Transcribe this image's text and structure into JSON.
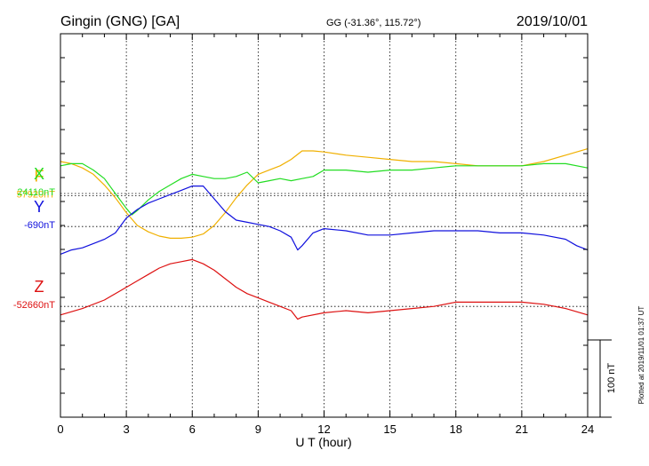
{
  "header": {
    "station": "Gingin (GNG)  [GA]",
    "coords": "GG (-31.36°, 115.72°)",
    "date": "2019/10/01"
  },
  "footer": {
    "plotted": "Plotted at 2019/11/01 01:37 UT"
  },
  "chart_data": {
    "type": "line",
    "title": "Gingin (GNG)  [GA]",
    "xlabel": "U T (hour)",
    "ylabel": "",
    "xlim": [
      0,
      24
    ],
    "x_ticks": [
      0,
      3,
      6,
      9,
      12,
      15,
      18,
      21,
      24
    ],
    "x_tick_labels": [
      "0",
      "3",
      "6",
      "9",
      "12",
      "15",
      "18",
      "21",
      "24"
    ],
    "grid": true,
    "scale_bar": {
      "value": 100,
      "label": "100 nT"
    },
    "series": [
      {
        "name": "F",
        "baseline_label": "57920nT",
        "baseline": 57920,
        "color": "#f0b000",
        "ylim": [
          57712,
          58072
        ],
        "x": [
          0,
          0.5,
          1,
          1.5,
          2,
          2.5,
          3,
          3.5,
          4,
          4.5,
          5,
          5.5,
          6,
          6.5,
          7,
          7.5,
          8,
          8.5,
          9,
          9.5,
          10,
          10.5,
          11,
          11.5,
          12,
          13,
          14,
          15,
          16,
          17,
          18,
          19,
          20,
          21,
          22,
          23,
          24
        ],
        "y": [
          57952,
          57950,
          57946,
          57940,
          57930,
          57918,
          57904,
          57892,
          57886,
          57882,
          57880,
          57880,
          57881,
          57884,
          57892,
          57904,
          57918,
          57930,
          57940,
          57944,
          57948,
          57954,
          57962,
          57962,
          57961,
          57958,
          57956,
          57954,
          57952,
          57952,
          57950,
          57948,
          57948,
          57948,
          57952,
          57958,
          57964
        ]
      },
      {
        "name": "X",
        "baseline_label": "24110nT",
        "baseline": 24110,
        "color": "#22dd22",
        "ylim": [
          23900,
          24260
        ],
        "x": [
          0,
          0.5,
          1,
          1.5,
          2,
          2.5,
          3,
          3.25,
          3.5,
          4,
          4.5,
          5,
          5.5,
          6,
          6.5,
          7,
          7.5,
          8,
          8.5,
          9,
          9.5,
          10,
          10.5,
          11,
          11.5,
          12,
          13,
          14,
          15,
          16,
          17,
          18,
          19,
          20,
          21,
          22,
          23,
          24
        ],
        "y": [
          24136,
          24138,
          24138,
          24132,
          24124,
          24110,
          24096,
          24090,
          24094,
          24104,
          24112,
          24118,
          24124,
          24128,
          24126,
          24124,
          24124,
          24126,
          24130,
          24120,
          24122,
          24124,
          24122,
          24124,
          24126,
          24132,
          24132,
          24130,
          24132,
          24132,
          24134,
          24136,
          24136,
          24136,
          24136,
          24138,
          24138,
          24134
        ]
      },
      {
        "name": "Y",
        "baseline_label": "-690nT",
        "baseline": -690,
        "color": "#1010dd",
        "ylim": [
          -869,
          -509
        ],
        "x": [
          0,
          0.5,
          1,
          1.5,
          2,
          2.5,
          3,
          3.5,
          4,
          4.5,
          5,
          5.5,
          6,
          6.5,
          7,
          7.5,
          8,
          8.5,
          9,
          9.5,
          10,
          10.5,
          10.8,
          11,
          11.5,
          12,
          13,
          14,
          15,
          16,
          17,
          18,
          19,
          20,
          21,
          22,
          23,
          23.5,
          24
        ],
        "y": [
          -716,
          -712,
          -710,
          -706,
          -702,
          -696,
          -682,
          -674,
          -668,
          -664,
          -660,
          -656,
          -652,
          -652,
          -664,
          -676,
          -684,
          -686,
          -688,
          -690,
          -694,
          -700,
          -712,
          -708,
          -696,
          -692,
          -694,
          -698,
          -698,
          -696,
          -694,
          -694,
          -694,
          -696,
          -696,
          -698,
          -702,
          -708,
          -712
        ]
      },
      {
        "name": "Z",
        "baseline_label": "-52660nT",
        "baseline": -52660,
        "color": "#dd1111",
        "ylim": [
          -52764,
          -52404
        ],
        "x": [
          0,
          1,
          2,
          3,
          3.5,
          4,
          4.5,
          5,
          5.5,
          6,
          6.5,
          7,
          7.5,
          8,
          8.5,
          9,
          9.5,
          10,
          10.5,
          10.8,
          11,
          12,
          13,
          14,
          15,
          16,
          17,
          18,
          19,
          20,
          21,
          22,
          23,
          24
        ],
        "y": [
          -52668,
          -52662,
          -52654,
          -52642,
          -52636,
          -52630,
          -52624,
          -52620,
          -52618,
          -52616,
          -52620,
          -52626,
          -52634,
          -52642,
          -52648,
          -52652,
          -52656,
          -52660,
          -52664,
          -52672,
          -52670,
          -52666,
          -52664,
          -52666,
          -52664,
          -52662,
          -52660,
          -52656,
          -52656,
          -52656,
          -52656,
          -52658,
          -52662,
          -52668
        ]
      }
    ]
  }
}
